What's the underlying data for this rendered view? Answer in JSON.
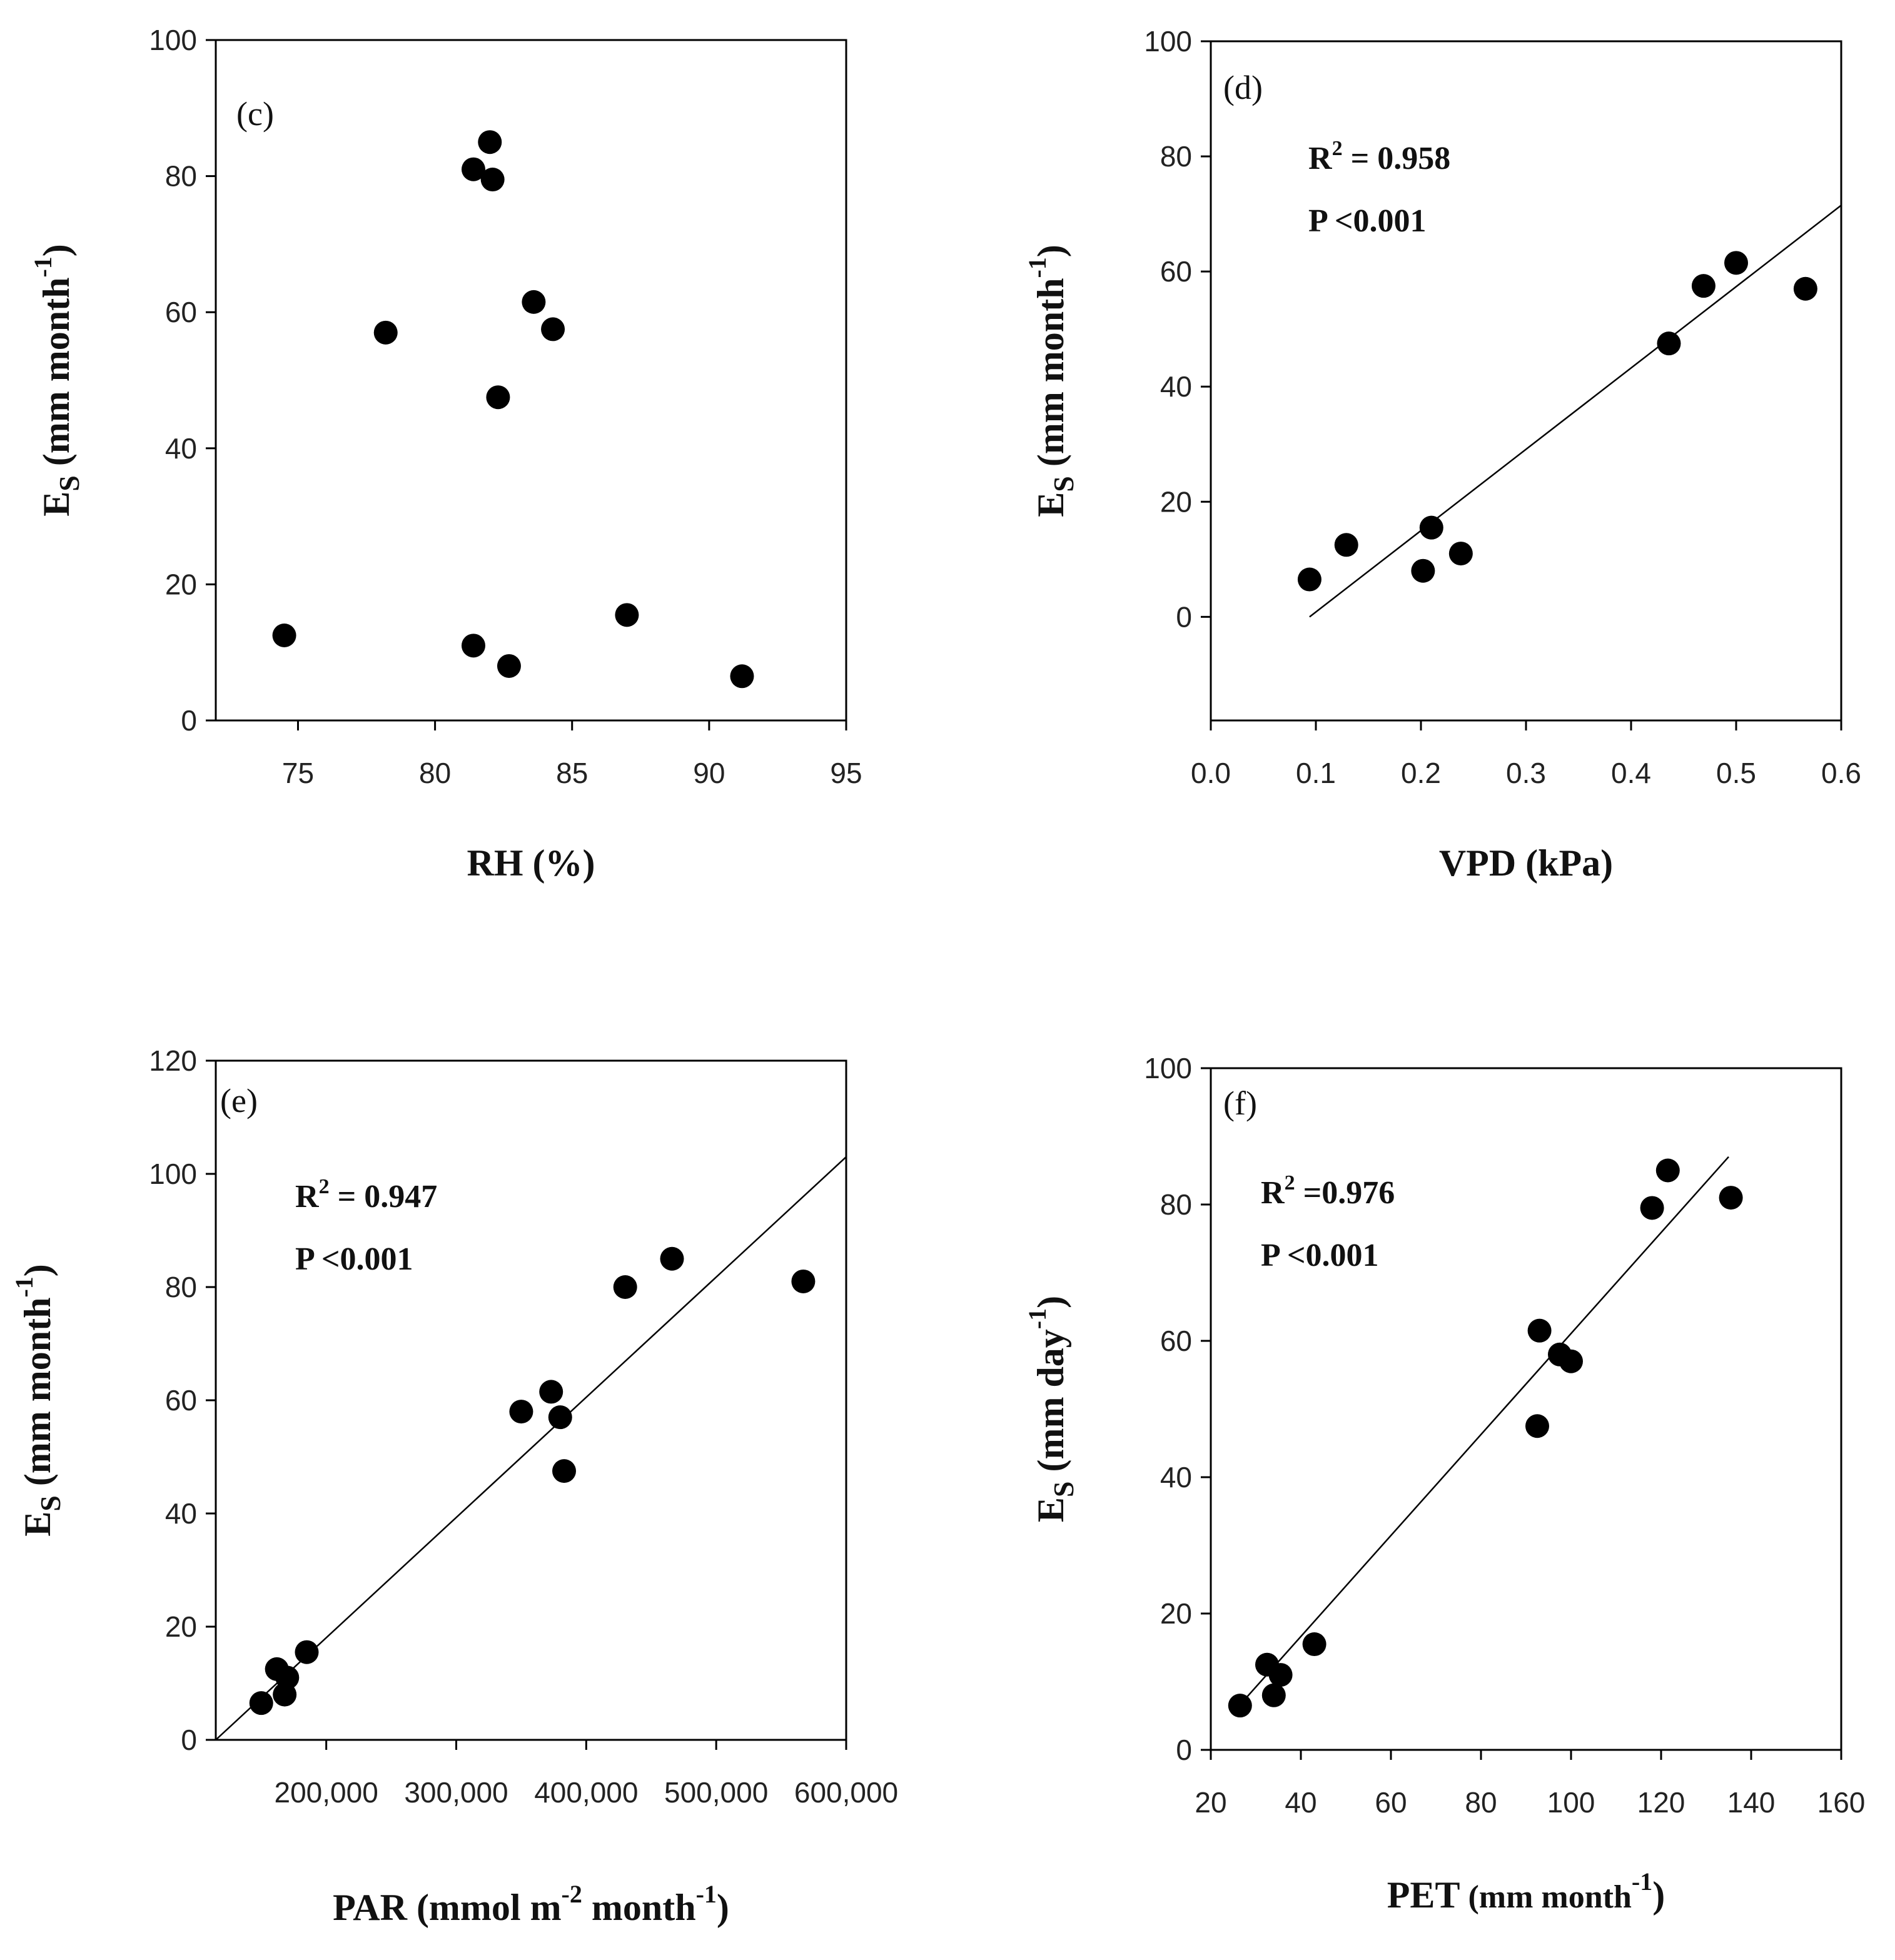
{
  "chart_data": [
    {
      "id": "c",
      "type": "scatter",
      "panel_label": "(c)",
      "xlabel": "RH (%)",
      "ylabel": {
        "main": "E",
        "sub": "S",
        "rest": " (mm month",
        "sup": "-1",
        "close": ")"
      },
      "xlim": [
        72,
        95
      ],
      "ylim": [
        0,
        100
      ],
      "xticks": [
        75,
        80,
        85,
        90,
        95
      ],
      "yticks": [
        0,
        20,
        40,
        60,
        80,
        100
      ],
      "points": [
        {
          "x": 74.5,
          "y": 12.5
        },
        {
          "x": 78.2,
          "y": 57.0
        },
        {
          "x": 81.4,
          "y": 81.0
        },
        {
          "x": 81.4,
          "y": 11.0
        },
        {
          "x": 82.0,
          "y": 85.0
        },
        {
          "x": 82.1,
          "y": 79.5
        },
        {
          "x": 82.3,
          "y": 47.5
        },
        {
          "x": 82.7,
          "y": 8.0
        },
        {
          "x": 83.6,
          "y": 61.5
        },
        {
          "x": 84.3,
          "y": 57.5
        },
        {
          "x": 87.0,
          "y": 15.5
        },
        {
          "x": 91.2,
          "y": 6.5
        }
      ],
      "fit": null,
      "stats": null
    },
    {
      "id": "d",
      "type": "scatter",
      "panel_label": "(d)",
      "xlabel": "VPD (kPa)",
      "ylabel": {
        "main": "E",
        "sub": "S",
        "rest": " (mm month",
        "sup": "-1",
        "close": ")"
      },
      "xlim": [
        0.0,
        0.6
      ],
      "ylim": [
        -18,
        100
      ],
      "xticks": [
        0.0,
        0.1,
        0.2,
        0.3,
        0.4,
        0.5,
        0.6
      ],
      "xtick_labels": [
        "0.0",
        "0.1",
        "0.2",
        "0.3",
        "0.4",
        "0.5",
        "0.6"
      ],
      "yticks": [
        0,
        20,
        40,
        60,
        80,
        100
      ],
      "points": [
        {
          "x": 0.094,
          "y": 6.5
        },
        {
          "x": 0.129,
          "y": 12.5
        },
        {
          "x": 0.202,
          "y": 8.0
        },
        {
          "x": 0.21,
          "y": 15.5
        },
        {
          "x": 0.238,
          "y": 11.0
        },
        {
          "x": 0.436,
          "y": 47.5
        },
        {
          "x": 0.469,
          "y": 57.5
        },
        {
          "x": 0.5,
          "y": 61.5
        },
        {
          "x": 0.566,
          "y": 57.0
        }
      ],
      "fit": {
        "x0": 0.094,
        "y0": 0.0,
        "x1": 0.6,
        "y1": 71.5
      },
      "stats": {
        "r2_label": "R",
        "r2_sup": "2",
        "r2_value": " = 0.958",
        "p_text": "P <0.001"
      }
    },
    {
      "id": "e",
      "type": "scatter",
      "panel_label": "(e)",
      "xlabel": {
        "main": "PAR (mmol m",
        "sup1": "-2",
        "mid": " month",
        "sup2": "-1",
        "close": ")"
      },
      "ylabel": {
        "main": "E",
        "sub": "S",
        "rest": " (mm month",
        "sup": "-1",
        "close": ")"
      },
      "xlim": [
        115000,
        600000
      ],
      "ylim": [
        0,
        120
      ],
      "xticks": [
        200000,
        300000,
        400000,
        500000,
        600000
      ],
      "xtick_labels": [
        "200,000",
        "300,000",
        "400,000",
        "500,000",
        "600,000"
      ],
      "yticks": [
        0,
        20,
        40,
        60,
        80,
        100,
        120
      ],
      "points": [
        {
          "x": 150000,
          "y": 6.5
        },
        {
          "x": 162000,
          "y": 12.5
        },
        {
          "x": 168000,
          "y": 8.0
        },
        {
          "x": 170000,
          "y": 11.0
        },
        {
          "x": 185000,
          "y": 15.5
        },
        {
          "x": 350000,
          "y": 58.0
        },
        {
          "x": 373000,
          "y": 61.5
        },
        {
          "x": 380000,
          "y": 57.0
        },
        {
          "x": 383000,
          "y": 47.5
        },
        {
          "x": 430000,
          "y": 80.0
        },
        {
          "x": 466000,
          "y": 85.0
        },
        {
          "x": 567000,
          "y": 81.0
        }
      ],
      "fit": {
        "x0": 115000,
        "y0": 0.0,
        "x1": 600000,
        "y1": 103.0
      },
      "stats": {
        "r2_label": "R",
        "r2_sup": "2",
        "r2_value": " = 0.947",
        "p_text": "P <0.001"
      }
    },
    {
      "id": "f",
      "type": "scatter",
      "panel_label": "(f)",
      "xlabel": {
        "main": "PET",
        "rest": " (mm month",
        "sup": "-1",
        "close": ")"
      },
      "ylabel": {
        "main": "E",
        "sub": "S",
        "rest": " (mm day",
        "sup": "-1",
        "close": ")"
      },
      "xlim": [
        20,
        160
      ],
      "ylim": [
        0,
        100
      ],
      "xticks": [
        20,
        40,
        60,
        80,
        100,
        120,
        140,
        160
      ],
      "yticks": [
        0,
        20,
        40,
        60,
        80,
        100
      ],
      "points": [
        {
          "x": 26.5,
          "y": 6.5
        },
        {
          "x": 32.5,
          "y": 12.5
        },
        {
          "x": 34.0,
          "y": 8.0
        },
        {
          "x": 35.5,
          "y": 11.0
        },
        {
          "x": 43.0,
          "y": 15.5
        },
        {
          "x": 92.5,
          "y": 47.5
        },
        {
          "x": 93.0,
          "y": 61.5
        },
        {
          "x": 97.5,
          "y": 58.0
        },
        {
          "x": 100.0,
          "y": 57.0
        },
        {
          "x": 118.0,
          "y": 79.5
        },
        {
          "x": 121.5,
          "y": 85.0
        },
        {
          "x": 135.5,
          "y": 81.0
        }
      ],
      "fit": {
        "x0": 27.0,
        "y0": 7.0,
        "x1": 135.0,
        "y1": 87.0
      },
      "stats": {
        "r2_label": "R",
        "r2_sup": "2",
        "r2_value": " =0.976",
        "p_text": "P <0.001"
      }
    }
  ]
}
